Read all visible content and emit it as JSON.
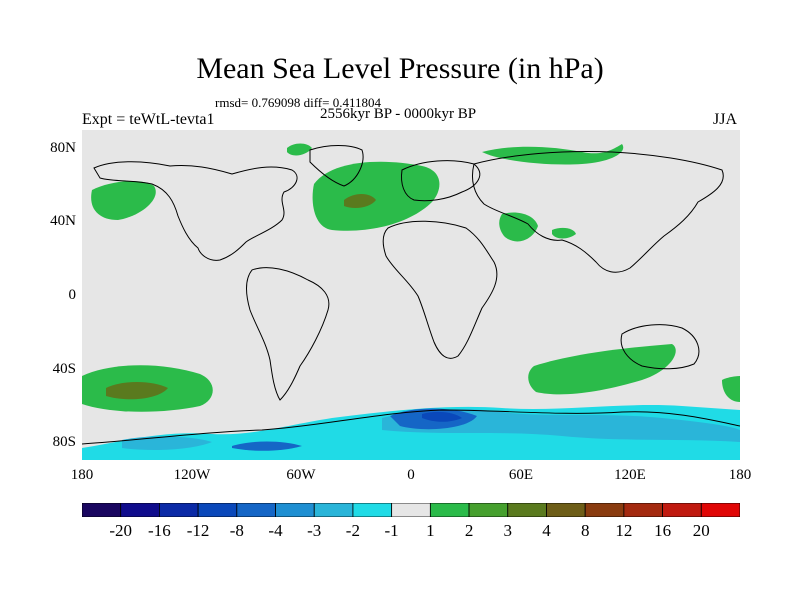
{
  "header": {
    "title": "Mean Sea Level Pressure (in hPa)",
    "stats": "rmsd= 0.769098 diff= 0.411804",
    "period": "2556kyr BP - 0000kyr BP",
    "experiment": "Expt = teWtL-tevta1",
    "season": "JJA"
  },
  "map": {
    "lat_labels": [
      "80N",
      "40N",
      "0",
      "40S",
      "80S"
    ],
    "lon_labels": [
      "180",
      "120W",
      "60W",
      "0",
      "60E",
      "120E",
      "180"
    ],
    "colors": {
      "background": "#e6e6e6",
      "coast": "#000000"
    }
  },
  "colorbar": {
    "colors": [
      "#1a0660",
      "#100c8c",
      "#0b2aa6",
      "#0a48ba",
      "#1566c6",
      "#1f8fd2",
      "#2ab5d9",
      "#20dbe6",
      "#e6e6e6",
      "#2bbb4a",
      "#46a02e",
      "#5a7a1e",
      "#6e5e18",
      "#8a3c10",
      "#a42a10",
      "#c01a10",
      "#e00606"
    ],
    "labels": [
      "-20",
      "-16",
      "-12",
      "-8",
      "-4",
      "-3",
      "-2",
      "-1",
      "1",
      "2",
      "3",
      "4",
      "8",
      "12",
      "16",
      "20"
    ]
  },
  "fields": {
    "green": "#2bbb4a",
    "olive": "#5a7a1e",
    "cyan": "#20dbe6",
    "lightblue": "#2ab5d9",
    "midblue": "#1566c6",
    "darkblue": "#0a48ba"
  }
}
